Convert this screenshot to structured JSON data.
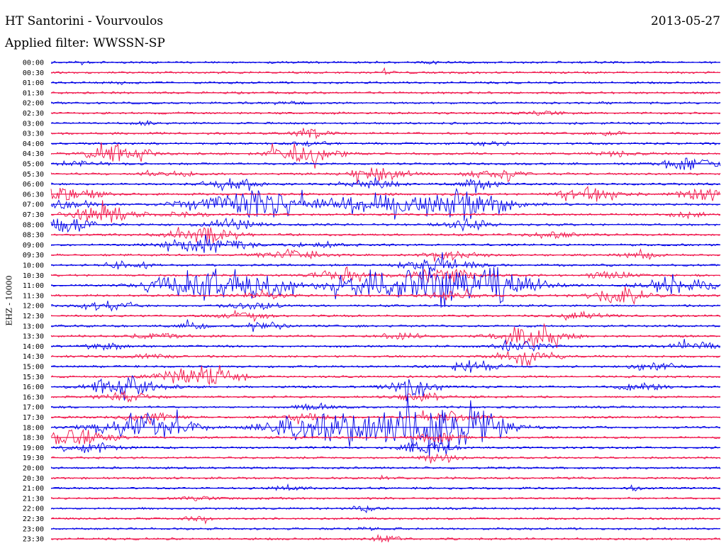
{
  "header": {
    "title": "HT Santorini - Vourvoulos",
    "date": "2013-05-27",
    "filter": "Applied filter: WWSSN-SP"
  },
  "y_axis_label": "EHZ - 10000",
  "colors": {
    "trace_a": "#0000e6",
    "trace_b": "#f0144a",
    "text": "#000000",
    "background": "#ffffff"
  },
  "chart_data": {
    "type": "line",
    "ylabel": "EHZ - 10000",
    "trace_colors": [
      "#0000e6",
      "#f0144a"
    ],
    "rows": [
      {
        "label": "00:00",
        "events": [
          [
            0.05,
            0.35,
            0.15
          ],
          [
            0.57,
            0.5,
            0.1
          ]
        ]
      },
      {
        "label": "00:30",
        "events": [
          [
            0.5,
            0.6,
            0.1
          ]
        ]
      },
      {
        "label": "01:00",
        "events": [
          [
            0.11,
            0.6,
            0.1
          ]
        ]
      },
      {
        "label": "01:30",
        "events": []
      },
      {
        "label": "02:00",
        "events": [
          [
            0.35,
            0.25,
            0.3
          ]
        ]
      },
      {
        "label": "02:30",
        "events": [
          [
            0.74,
            0.4,
            0.3
          ]
        ]
      },
      {
        "label": "03:00",
        "events": [
          [
            0.14,
            0.4,
            0.2
          ]
        ]
      },
      {
        "label": "03:30",
        "events": [
          [
            0.39,
            1.2,
            0.25
          ],
          [
            0.84,
            0.6,
            0.2
          ]
        ]
      },
      {
        "label": "04:00",
        "events": [
          [
            0.39,
            0.5,
            0.3
          ],
          [
            0.66,
            0.6,
            0.3
          ]
        ]
      },
      {
        "label": "04:30",
        "events": [
          [
            0.1,
            2.2,
            0.5
          ],
          [
            0.38,
            2.6,
            0.5
          ],
          [
            0.85,
            0.6,
            0.4
          ]
        ]
      },
      {
        "label": "05:00",
        "events": [
          [
            0.05,
            0.6,
            0.5
          ],
          [
            0.96,
            1.5,
            0.5
          ]
        ]
      },
      {
        "label": "05:30",
        "events": [
          [
            0.49,
            2.0,
            0.4
          ],
          [
            0.66,
            1.5,
            0.4
          ],
          [
            0.18,
            0.7,
            0.4
          ]
        ]
      },
      {
        "label": "06:00",
        "events": [
          [
            0.27,
            1.5,
            0.4
          ],
          [
            0.48,
            1.4,
            0.4
          ],
          [
            0.64,
            1.6,
            0.3
          ]
        ]
      },
      {
        "label": "06:30",
        "events": [
          [
            0.01,
            2.0,
            0.6
          ],
          [
            0.81,
            2.0,
            0.5
          ],
          [
            0.98,
            1.8,
            0.4
          ]
        ]
      },
      {
        "label": "07:00",
        "events": [
          [
            0.02,
            1.5,
            0.4
          ],
          [
            0.27,
            3.0,
            0.7
          ],
          [
            0.33,
            2.8,
            0.6
          ],
          [
            0.47,
            2.5,
            0.6
          ],
          [
            0.55,
            1.7,
            0.5
          ],
          [
            0.62,
            3.2,
            0.7
          ]
        ]
      },
      {
        "label": "07:30",
        "events": [
          [
            0.08,
            2.5,
            0.5
          ],
          [
            0.2,
            0.7,
            0.4
          ],
          [
            0.95,
            0.8,
            0.3
          ]
        ]
      },
      {
        "label": "08:00",
        "events": [
          [
            0.02,
            2.0,
            0.4
          ],
          [
            0.27,
            1.5,
            0.4
          ],
          [
            0.62,
            1.5,
            0.4
          ]
        ]
      },
      {
        "label": "08:30",
        "events": [
          [
            0.23,
            2.5,
            0.5
          ],
          [
            0.75,
            0.8,
            0.4
          ]
        ]
      },
      {
        "label": "09:00",
        "events": [
          [
            0.2,
            2.0,
            0.4
          ],
          [
            0.26,
            1.8,
            0.4
          ],
          [
            0.4,
            0.6,
            0.4
          ]
        ]
      },
      {
        "label": "09:30",
        "events": [
          [
            0.36,
            1.3,
            0.5
          ],
          [
            0.6,
            1.2,
            0.4
          ],
          [
            0.88,
            1.0,
            0.3
          ]
        ]
      },
      {
        "label": "10:00",
        "events": [
          [
            0.58,
            2.0,
            0.5
          ],
          [
            0.11,
            0.8,
            0.4
          ]
        ]
      },
      {
        "label": "10:30",
        "events": [
          [
            0.44,
            1.8,
            0.4
          ],
          [
            0.59,
            2.0,
            0.5
          ],
          [
            0.84,
            1.0,
            0.4
          ]
        ]
      },
      {
        "label": "11:00",
        "events": [
          [
            0.2,
            3.0,
            0.6
          ],
          [
            0.26,
            2.8,
            0.6
          ],
          [
            0.32,
            2.8,
            0.5
          ],
          [
            0.47,
            2.6,
            0.6
          ],
          [
            0.56,
            2.8,
            0.6
          ],
          [
            0.61,
            3.4,
            0.8
          ],
          [
            0.67,
            3.2,
            0.6
          ],
          [
            0.94,
            2.8,
            0.5
          ]
        ]
      },
      {
        "label": "11:30",
        "events": [
          [
            0.85,
            2.4,
            0.5
          ],
          [
            0.32,
            0.8,
            0.4
          ],
          [
            0.6,
            1.0,
            0.4
          ]
        ]
      },
      {
        "label": "12:00",
        "events": [
          [
            0.08,
            1.2,
            0.4
          ],
          [
            0.3,
            1.0,
            0.4
          ]
        ]
      },
      {
        "label": "12:30",
        "events": [
          [
            0.29,
            1.0,
            0.4
          ],
          [
            0.79,
            0.9,
            0.4
          ]
        ]
      },
      {
        "label": "13:00",
        "events": [
          [
            0.21,
            0.8,
            0.3
          ],
          [
            0.32,
            1.0,
            0.3
          ]
        ]
      },
      {
        "label": "13:30",
        "events": [
          [
            0.16,
            0.8,
            0.4
          ],
          [
            0.53,
            0.8,
            0.4
          ],
          [
            0.72,
            3.0,
            0.5
          ]
        ]
      },
      {
        "label": "14:00",
        "events": [
          [
            0.08,
            0.9,
            0.3
          ],
          [
            0.7,
            1.5,
            0.4
          ],
          [
            0.96,
            1.2,
            0.4
          ]
        ]
      },
      {
        "label": "14:30",
        "events": [
          [
            0.71,
            2.5,
            0.4
          ],
          [
            0.15,
            0.5,
            0.4
          ]
        ]
      },
      {
        "label": "15:00",
        "events": [
          [
            0.63,
            1.4,
            0.4
          ],
          [
            0.9,
            1.0,
            0.4
          ]
        ]
      },
      {
        "label": "15:30",
        "events": [
          [
            0.2,
            1.8,
            0.5
          ],
          [
            0.25,
            1.6,
            0.4
          ]
        ]
      },
      {
        "label": "16:00",
        "events": [
          [
            0.11,
            3.0,
            0.5
          ],
          [
            0.54,
            2.2,
            0.4
          ],
          [
            0.88,
            1.0,
            0.4
          ]
        ]
      },
      {
        "label": "16:30",
        "events": [
          [
            0.11,
            1.2,
            0.4
          ],
          [
            0.55,
            1.0,
            0.4
          ]
        ]
      },
      {
        "label": "17:00",
        "events": [
          [
            0.4,
            1.0,
            0.3
          ]
        ]
      },
      {
        "label": "17:30",
        "events": [
          [
            0.15,
            1.2,
            0.4
          ],
          [
            0.39,
            1.2,
            0.4
          ],
          [
            0.59,
            1.4,
            0.4
          ]
        ]
      },
      {
        "label": "18:00",
        "events": [
          [
            0.14,
            3.5,
            0.7
          ],
          [
            0.39,
            3.4,
            0.7
          ],
          [
            0.48,
            2.8,
            0.6
          ],
          [
            0.56,
            3.5,
            0.7
          ],
          [
            0.6,
            3.0,
            0.6
          ],
          [
            0.64,
            3.2,
            0.6
          ]
        ]
      },
      {
        "label": "18:30",
        "events": [
          [
            0.04,
            2.5,
            0.5
          ],
          [
            0.58,
            1.0,
            0.4
          ]
        ]
      },
      {
        "label": "19:00",
        "events": [
          [
            0.06,
            1.2,
            0.4
          ],
          [
            0.56,
            1.5,
            0.4
          ]
        ]
      },
      {
        "label": "19:30",
        "events": [
          [
            0.58,
            0.9,
            0.3
          ]
        ]
      },
      {
        "label": "20:00",
        "events": []
      },
      {
        "label": "20:30",
        "events": [
          [
            0.51,
            0.4,
            0.2
          ]
        ]
      },
      {
        "label": "21:00",
        "events": [
          [
            0.87,
            1.5,
            0.1
          ],
          [
            0.35,
            0.5,
            0.3
          ]
        ]
      },
      {
        "label": "21:30",
        "events": [
          [
            0.22,
            0.4,
            0.3
          ]
        ]
      },
      {
        "label": "22:00",
        "events": [
          [
            0.47,
            0.8,
            0.2
          ]
        ]
      },
      {
        "label": "22:30",
        "events": [
          [
            0.22,
            0.6,
            0.2
          ]
        ]
      },
      {
        "label": "23:00",
        "events": [
          [
            0.47,
            0.4,
            0.2
          ]
        ]
      },
      {
        "label": "23:30",
        "events": [
          [
            0.5,
            1.0,
            0.2
          ]
        ]
      }
    ]
  }
}
